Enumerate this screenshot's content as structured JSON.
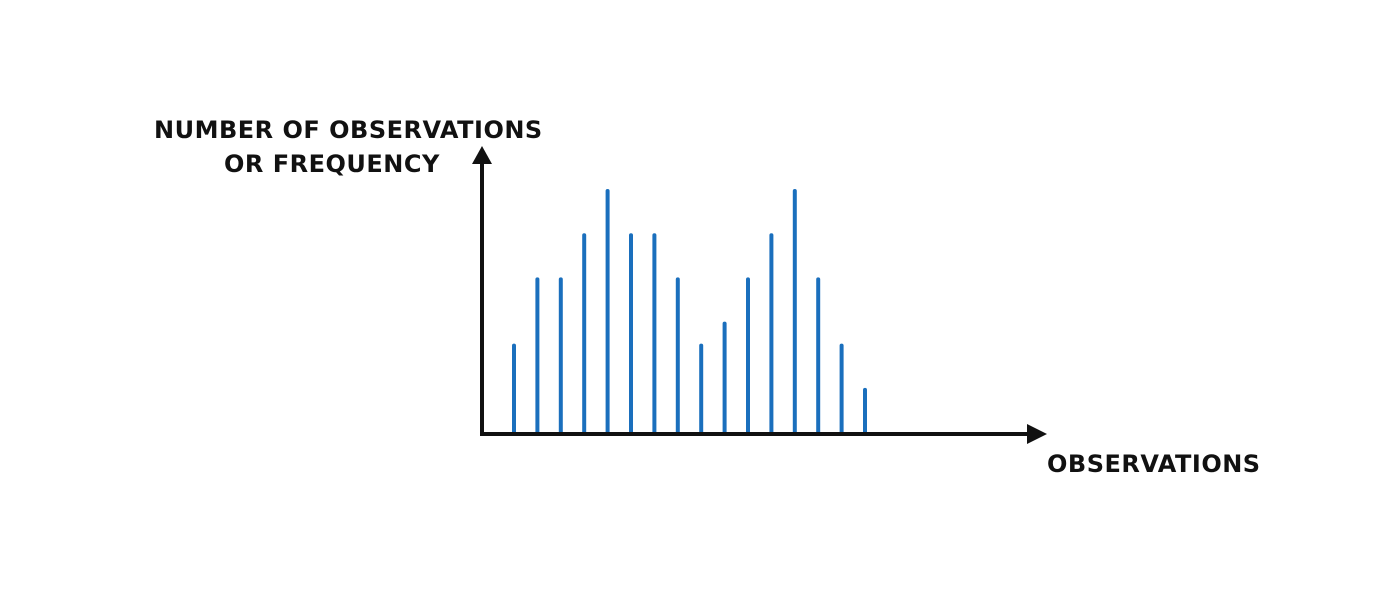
{
  "chart_data": {
    "type": "bar",
    "title": "",
    "ylabel_lines": [
      "NUMBER OF OBSERVATIONS",
      "OR FREQUENCY"
    ],
    "xlabel": "OBSERVATIONS",
    "values": [
      4,
      7,
      7,
      9,
      11,
      9,
      9,
      7,
      4,
      5,
      7,
      9,
      11,
      7,
      4,
      2
    ],
    "ylim": [
      0,
      11.5
    ],
    "grid": false,
    "legend": "none",
    "bar_color": "#1a6fbd",
    "axis_color": "#111111"
  }
}
